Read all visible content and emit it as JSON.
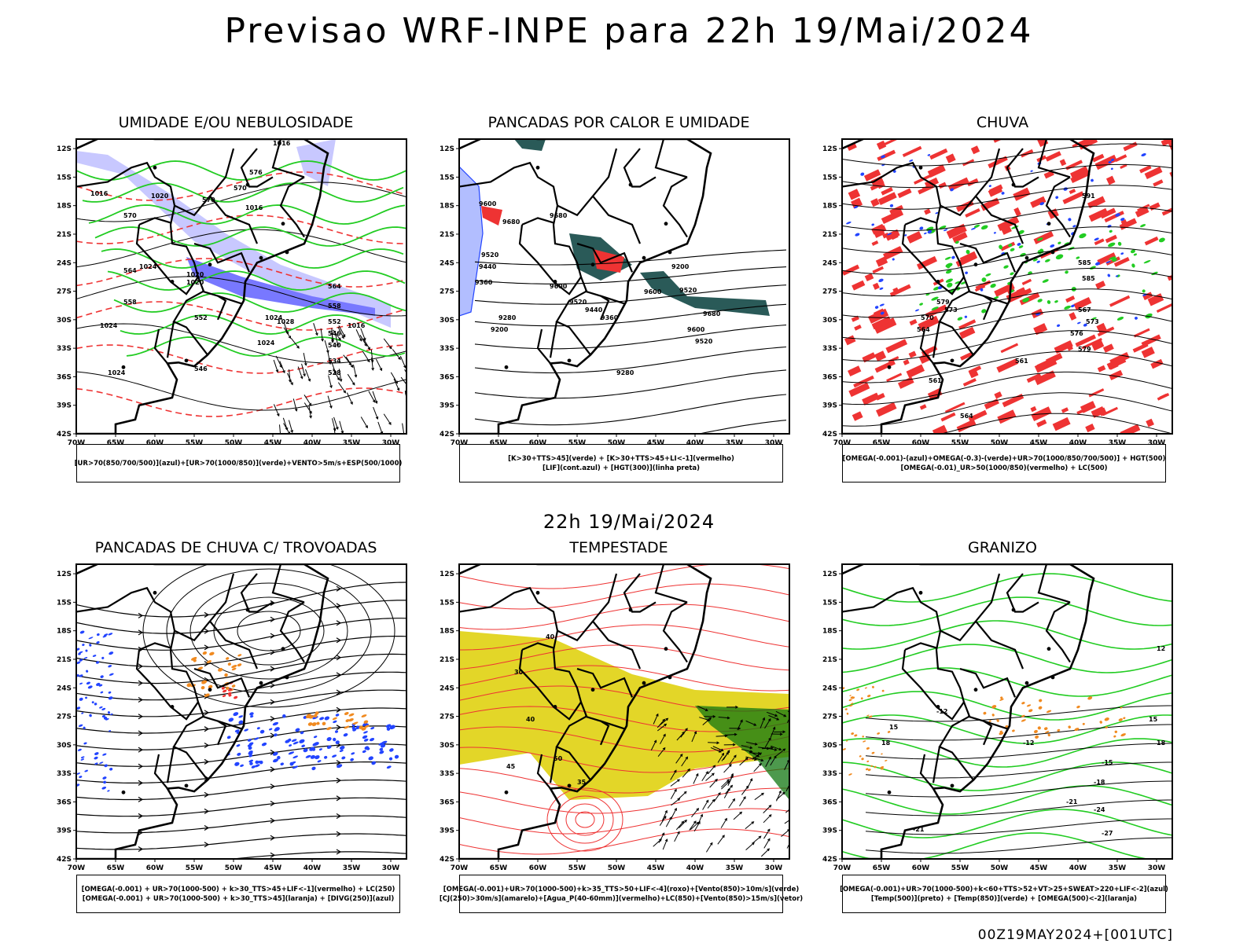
{
  "header": {
    "title": "Previsao WRF-INPE  para 22h 19/Mai/2024"
  },
  "middle": {
    "title": "22h 19/Mai/2024"
  },
  "footer": {
    "run": "00Z19MAY2024+[001UTC]"
  },
  "axes": {
    "lat_labels": [
      "12S",
      "15S",
      "18S",
      "21S",
      "24S",
      "27S",
      "30S",
      "33S",
      "36S",
      "39S",
      "42S"
    ],
    "lon_labels": [
      "70W",
      "65W",
      "60W",
      "55W",
      "50W",
      "45W",
      "40W",
      "35W",
      "30W"
    ],
    "lat_range": [
      -42,
      -11
    ],
    "lon_range": [
      -70,
      -28
    ]
  },
  "colors": {
    "blue_shade": "#7878ff",
    "light_blue": "#c8c8ff",
    "green": "#22cc22",
    "red": "#ee3333",
    "dark_teal": "#2a5a58",
    "yellow": "#e3d628",
    "orange": "#f08a20",
    "blue_dot": "#2244ff",
    "dark_green": "#117711"
  },
  "panels": [
    {
      "id": "umidade",
      "title": "UMIDADE E/OU NEBULOSIDADE",
      "legend": [
        "[UR>70(850/700/500)](azul)+[UR>70(1000/850)](verde)+VENTO>5m/s+ESP(500/1000)"
      ],
      "contour_labels": [
        "1016",
        "1016",
        "1020",
        "1016",
        "1020",
        "1024",
        "1020",
        "1024",
        "1028",
        "1024",
        "1016",
        "1024",
        "1024",
        "576",
        "570",
        "570",
        "564",
        "558",
        "552",
        "546",
        "540",
        "534",
        "528",
        "570",
        "564",
        "558",
        "552",
        "546"
      ]
    },
    {
      "id": "pancadas-calor",
      "title": "PANCADAS POR CALOR E UMIDADE",
      "legend": [
        "[K>30+TTS>45](verde) + [K>30+TTS>45+LI<-1](vermelho)",
        "[LIF](cont.azul) + [HGT(300)](linha preta)"
      ],
      "contour_labels": [
        "9600",
        "9680",
        "9520",
        "9440",
        "9360",
        "9280",
        "9200",
        "9680",
        "9600",
        "9520",
        "9440",
        "9360",
        "9280",
        "9200",
        "9600",
        "9520",
        "9680",
        "9600",
        "9520"
      ]
    },
    {
      "id": "chuva",
      "title": "CHUVA",
      "legend": [
        "[OMEGA(-0.001)-(azul)+OMEGA(-0.3)-(verde)+UR>70(1000/850/700/500)] + HGT(500)",
        "[OMEGA(-0.01)_UR>50(1000/850)(vermelho) + LC(500)"
      ],
      "contour_labels": [
        "591",
        "585",
        "579",
        "573",
        "570",
        "564",
        "561",
        "567",
        "573",
        "576",
        "579",
        "585",
        "561",
        "564"
      ]
    },
    {
      "id": "trovoadas",
      "title": "PANCADAS DE CHUVA C/ TROVOADAS",
      "legend": [
        "[OMEGA(-0.001) + UR>70(1000-500) + k>30_TTS>45+LIF<-1](vermelho) + LC(250)",
        "[OMEGA(-0.001) + UR>70(1000-500) + k>30_TTS>45](laranja) + [DIVG(250)](azul)"
      ],
      "contour_labels": []
    },
    {
      "id": "tempestade",
      "title": "TEMPESTADE",
      "legend": [
        "[OMEGA(-0.001)+UR>70(1000-500)+k>35_TTS>50+LIF<-4](roxo)+[Vento(850)>10m/s](verde)",
        "[CJ(250)>30m/s](amarelo)+[Agua_P(40-60mm)](vermelho)+LC(850)+[Vento(850)>15m/s](vetor)"
      ],
      "contour_labels": [
        "40",
        "30",
        "40",
        "45",
        "50",
        "35"
      ]
    },
    {
      "id": "granizo",
      "title": "GRANIZO",
      "legend": [
        "[OMEGA(-0.001)+UR>70(1000-500)+k<60+TTS>52+VT>25+SWEAT>220+LIF<-2](azul)",
        "[Temp(500)](preto) + [Temp(850)](verde) + [OMEGA(500)<-2](laranja)"
      ],
      "contour_labels": [
        "-12",
        "-12",
        "15",
        "18",
        "-15",
        "-18",
        "-21",
        "-24",
        "-27",
        "-21",
        "18",
        "15",
        "12"
      ]
    }
  ]
}
